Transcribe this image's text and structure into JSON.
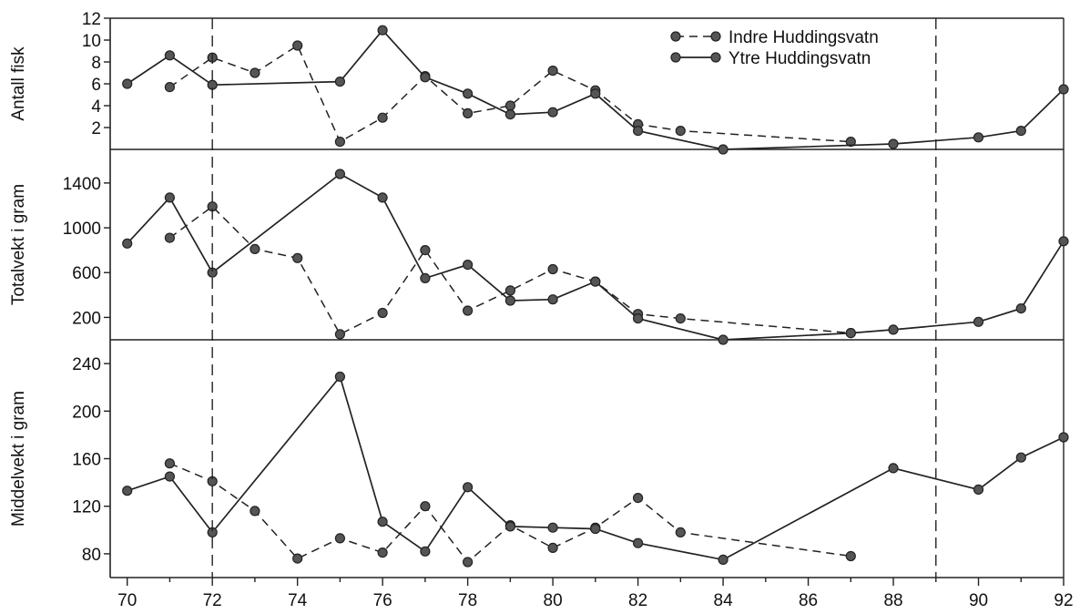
{
  "chart_data": {
    "type": "line",
    "legend_position": "top-right",
    "x_ticks": [
      "70",
      "72",
      "74",
      "76",
      "78",
      "80",
      "82",
      "84",
      "86",
      "88",
      "90",
      "92"
    ],
    "xlim": [
      69.6,
      92
    ],
    "reference_lines_x": [
      72,
      89
    ],
    "series_styles": [
      {
        "name": "Indre Huddingsvatn",
        "line": "dashed",
        "marker": "circle"
      },
      {
        "name": "Ytre Huddingsvatn",
        "line": "solid",
        "marker": "circle"
      }
    ],
    "panels": [
      {
        "ylabel": "Antall fisk",
        "ylim": [
          0,
          12
        ],
        "y_ticks": [
          "2",
          "4",
          "6",
          "8",
          "10",
          "12"
        ],
        "y_tick_values": [
          2,
          4,
          6,
          8,
          10,
          12
        ],
        "series": [
          {
            "name": "Indre Huddingsvatn",
            "points": [
              [
                71,
                5.7
              ],
              [
                72,
                8.4
              ],
              [
                73,
                7
              ],
              [
                74,
                9.5
              ],
              [
                75,
                0.7
              ],
              [
                76,
                2.9
              ],
              [
                77,
                6.7
              ],
              [
                78,
                3.3
              ],
              [
                79,
                4
              ],
              [
                80,
                7.2
              ],
              [
                81,
                5.4
              ],
              [
                82,
                2.3
              ],
              [
                83,
                1.7
              ],
              [
                87,
                0.7
              ]
            ]
          },
          {
            "name": "Ytre Huddingsvatn",
            "points": [
              [
                70,
                6
              ],
              [
                71,
                8.6
              ],
              [
                72,
                5.9
              ],
              [
                75,
                6.2
              ],
              [
                76,
                10.9
              ],
              [
                77,
                6.6
              ],
              [
                78,
                5.1
              ],
              [
                79,
                3.2
              ],
              [
                80,
                3.4
              ],
              [
                81,
                5.1
              ],
              [
                82,
                1.7
              ],
              [
                84,
                0
              ],
              [
                88,
                0.5
              ],
              [
                90,
                1.1
              ],
              [
                91,
                1.7
              ],
              [
                92,
                5.5
              ]
            ]
          }
        ]
      },
      {
        "ylabel": "Totalvekt i gram",
        "ylim": [
          0,
          1700
        ],
        "y_ticks": [
          "200",
          "600",
          "1000",
          "1400"
        ],
        "y_tick_values": [
          200,
          600,
          1000,
          1400
        ],
        "series": [
          {
            "name": "Indre Huddingsvatn",
            "points": [
              [
                71,
                910
              ],
              [
                72,
                1190
              ],
              [
                73,
                810
              ],
              [
                74,
                730
              ],
              [
                75,
                50
              ],
              [
                76,
                240
              ],
              [
                77,
                800
              ],
              [
                78,
                260
              ],
              [
                79,
                440
              ],
              [
                80,
                630
              ],
              [
                81,
                520
              ],
              [
                82,
                230
              ],
              [
                83,
                190
              ],
              [
                87,
                60
              ]
            ]
          },
          {
            "name": "Ytre Huddingsvatn",
            "points": [
              [
                70,
                860
              ],
              [
                71,
                1270
              ],
              [
                72,
                600
              ],
              [
                75,
                1480
              ],
              [
                76,
                1270
              ],
              [
                77,
                550
              ],
              [
                78,
                670
              ],
              [
                79,
                350
              ],
              [
                80,
                360
              ],
              [
                81,
                520
              ],
              [
                82,
                190
              ],
              [
                84,
                0
              ],
              [
                87,
                60
              ],
              [
                88,
                90
              ],
              [
                90,
                160
              ],
              [
                91,
                280
              ],
              [
                92,
                880
              ]
            ]
          }
        ]
      },
      {
        "ylabel": "Middelvekt i gram",
        "ylim": [
          60,
          260
        ],
        "y_ticks": [
          "80",
          "120",
          "160",
          "200",
          "240"
        ],
        "y_tick_values": [
          80,
          120,
          160,
          200,
          240
        ],
        "series": [
          {
            "name": "Indre Huddingsvatn",
            "points": [
              [
                71,
                156
              ],
              [
                72,
                141
              ],
              [
                73,
                116
              ],
              [
                74,
                76
              ],
              [
                75,
                93
              ],
              [
                76,
                81
              ],
              [
                77,
                120
              ],
              [
                78,
                73
              ],
              [
                79,
                104
              ],
              [
                80,
                85
              ],
              [
                81,
                102
              ],
              [
                82,
                127
              ],
              [
                83,
                98
              ],
              [
                87,
                78
              ]
            ]
          },
          {
            "name": "Ytre Huddingsvatn",
            "points": [
              [
                70,
                133
              ],
              [
                71,
                145
              ],
              [
                72,
                98
              ],
              [
                75,
                229
              ],
              [
                76,
                107
              ],
              [
                77,
                82
              ],
              [
                78,
                136
              ],
              [
                79,
                103
              ],
              [
                80,
                102
              ],
              [
                81,
                101
              ],
              [
                82,
                89
              ],
              [
                84,
                75
              ],
              [
                88,
                152
              ],
              [
                90,
                134
              ],
              [
                91,
                161
              ],
              [
                92,
                178
              ]
            ]
          }
        ]
      }
    ]
  }
}
